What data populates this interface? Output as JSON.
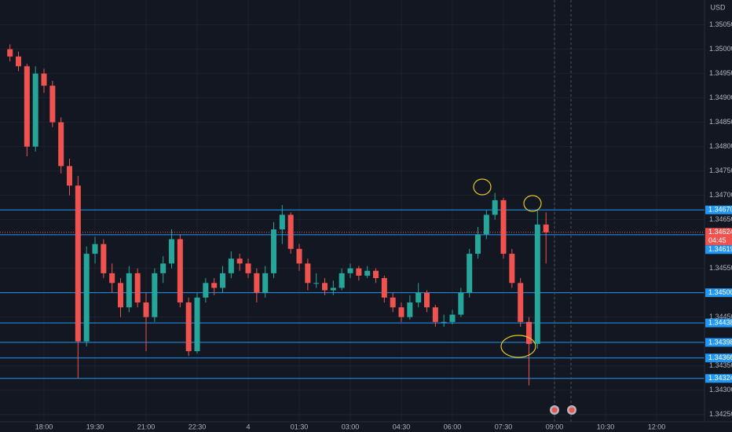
{
  "chart_data": {
    "type": "candlestick",
    "currency": "USD",
    "up_color": "#26a69a",
    "down_color": "#ef5350",
    "level_color": "#2196f3",
    "grid": true,
    "ylim": [
      1.34235,
      1.35101
    ],
    "yticks": [
      {
        "value": 1.3505,
        "label": "1.35050"
      },
      {
        "value": 1.35,
        "label": "1.35000"
      },
      {
        "value": 1.3495,
        "label": "1.34950"
      },
      {
        "value": 1.349,
        "label": "1.34900"
      },
      {
        "value": 1.3485,
        "label": "1.34850"
      },
      {
        "value": 1.348,
        "label": "1.34800"
      },
      {
        "value": 1.3475,
        "label": "1.34750"
      },
      {
        "value": 1.347,
        "label": "1.34700"
      },
      {
        "value": 1.3465,
        "label": "1.34650"
      },
      {
        "value": 1.3455,
        "label": "1.34550"
      },
      {
        "value": 1.3445,
        "label": "1.34450"
      },
      {
        "value": 1.3435,
        "label": "1.34350"
      },
      {
        "value": 1.343,
        "label": "1.34300"
      },
      {
        "value": 1.3425,
        "label": "1.34250"
      }
    ],
    "xlim": [
      -1.17,
      81.63
    ],
    "xticks": [
      {
        "value": 4,
        "label": "18:00"
      },
      {
        "value": 10,
        "label": "19:30"
      },
      {
        "value": 16,
        "label": "21:00"
      },
      {
        "value": 22,
        "label": "22:30"
      },
      {
        "value": 28,
        "label": "4"
      },
      {
        "value": 34,
        "label": "01:30"
      },
      {
        "value": 40,
        "label": "03:00"
      },
      {
        "value": 46,
        "label": "04:30"
      },
      {
        "value": 52,
        "label": "06:00"
      },
      {
        "value": 58,
        "label": "07:30"
      },
      {
        "value": 64,
        "label": "09:00"
      },
      {
        "value": 70,
        "label": "10:30"
      },
      {
        "value": 76,
        "label": "12:00"
      }
    ],
    "levels": [
      {
        "value": 1.3467,
        "label": "1.34670"
      },
      1.34619,
      {
        "value": 1.345,
        "label": "1.34500"
      },
      1.34438,
      1.34398,
      1.34366,
      1.34324
    ],
    "current_price": 1.34624,
    "countdown": "04:45",
    "candles": [
      [
        1.35,
        1.3501,
        1.34975,
        1.34985
      ],
      [
        1.34985,
        1.34995,
        1.34955,
        1.34965
      ],
      [
        1.34965,
        1.3497,
        1.3478,
        1.348
      ],
      [
        1.348,
        1.34965,
        1.3479,
        1.3495
      ],
      [
        1.3495,
        1.3496,
        1.3491,
        1.34925
      ],
      [
        1.34925,
        1.34935,
        1.3484,
        1.3485
      ],
      [
        1.3485,
        1.3486,
        1.34745,
        1.3476
      ],
      [
        1.3476,
        1.34775,
        1.347,
        1.3472
      ],
      [
        1.3472,
        1.3474,
        1.34324,
        1.344
      ],
      [
        1.344,
        1.34595,
        1.3439,
        1.3458
      ],
      [
        1.3458,
        1.34615,
        1.3456,
        1.346
      ],
      [
        1.346,
        1.3461,
        1.3453,
        1.3454
      ],
      [
        1.3454,
        1.3456,
        1.345,
        1.3452
      ],
      [
        1.3452,
        1.3453,
        1.3445,
        1.3447
      ],
      [
        1.3447,
        1.34555,
        1.3446,
        1.3454
      ],
      [
        1.3454,
        1.3455,
        1.3447,
        1.3448
      ],
      [
        1.3448,
        1.345,
        1.3438,
        1.3445
      ],
      [
        1.3445,
        1.3455,
        1.3444,
        1.3454
      ],
      [
        1.3454,
        1.34575,
        1.3452,
        1.3456
      ],
      [
        1.3456,
        1.3463,
        1.3455,
        1.3461
      ],
      [
        1.3461,
        1.3462,
        1.3447,
        1.3448
      ],
      [
        1.3448,
        1.3449,
        1.3437,
        1.3438
      ],
      [
        1.3438,
        1.345,
        1.34375,
        1.3449
      ],
      [
        1.3449,
        1.3453,
        1.3448,
        1.3452
      ],
      [
        1.3452,
        1.3453,
        1.34495,
        1.3451
      ],
      [
        1.3451,
        1.34555,
        1.345,
        1.3454
      ],
      [
        1.3454,
        1.34585,
        1.3453,
        1.3457
      ],
      [
        1.3457,
        1.3458,
        1.34545,
        1.3456
      ],
      [
        1.3456,
        1.3457,
        1.3453,
        1.3454
      ],
      [
        1.3454,
        1.3455,
        1.3448,
        1.345
      ],
      [
        1.345,
        1.34555,
        1.3449,
        1.3454
      ],
      [
        1.3454,
        1.34645,
        1.3453,
        1.3463
      ],
      [
        1.3463,
        1.3468,
        1.346,
        1.3466
      ],
      [
        1.3466,
        1.34665,
        1.3458,
        1.3459
      ],
      [
        1.3459,
        1.346,
        1.34545,
        1.3456
      ],
      [
        1.3456,
        1.3457,
        1.34505,
        1.3452
      ],
      [
        1.3452,
        1.3454,
        1.3451,
        1.3452
      ],
      [
        1.3452,
        1.3453,
        1.34495,
        1.34505
      ],
      [
        1.34505,
        1.34525,
        1.34495,
        1.3451
      ],
      [
        1.3451,
        1.3455,
        1.34505,
        1.3454
      ],
      [
        1.3454,
        1.3456,
        1.3453,
        1.3455
      ],
      [
        1.3455,
        1.34555,
        1.34525,
        1.34535
      ],
      [
        1.34535,
        1.34555,
        1.3453,
        1.34545
      ],
      [
        1.34545,
        1.3455,
        1.3452,
        1.3453
      ],
      [
        1.3453,
        1.34535,
        1.3448,
        1.3449
      ],
      [
        1.3449,
        1.345,
        1.3446,
        1.3447
      ],
      [
        1.3447,
        1.3448,
        1.3444,
        1.3445
      ],
      [
        1.3445,
        1.34495,
        1.34445,
        1.3448
      ],
      [
        1.3448,
        1.3452,
        1.3447,
        1.345
      ],
      [
        1.345,
        1.34505,
        1.3446,
        1.3447
      ],
      [
        1.3447,
        1.34475,
        1.3443,
        1.3444
      ],
      [
        1.3444,
        1.34455,
        1.3443,
        1.3444
      ],
      [
        1.3444,
        1.34465,
        1.34435,
        1.34455
      ],
      [
        1.34455,
        1.3451,
        1.3445,
        1.345
      ],
      [
        1.345,
        1.3459,
        1.3449,
        1.3458
      ],
      [
        1.3458,
        1.34635,
        1.3457,
        1.3462
      ],
      [
        1.3462,
        1.3467,
        1.3461,
        1.3466
      ],
      [
        1.3466,
        1.34705,
        1.3465,
        1.3469
      ],
      [
        1.3469,
        1.34695,
        1.3457,
        1.3458
      ],
      [
        1.3458,
        1.3459,
        1.3451,
        1.3452
      ],
      [
        1.3452,
        1.3453,
        1.3443,
        1.3444
      ],
      [
        1.3444,
        1.3445,
        1.3431,
        1.34395
      ],
      [
        1.34395,
        1.3467,
        1.34385,
        1.3464
      ],
      [
        1.3464,
        1.34665,
        1.3456,
        1.34624
      ]
    ]
  }
}
